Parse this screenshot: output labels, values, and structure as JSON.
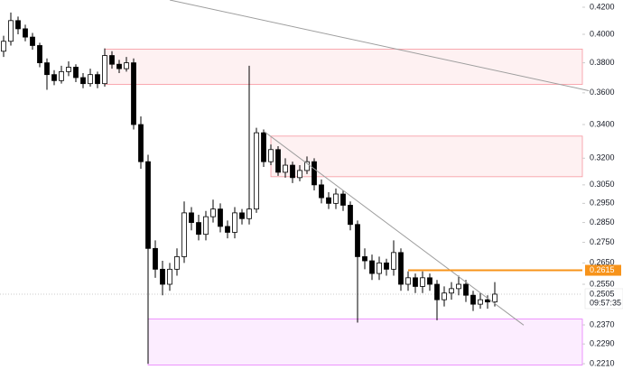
{
  "chart_data": {
    "type": "candlestick",
    "log_scale": true,
    "ylim": [
      0.215,
      0.4255
    ],
    "yticks": [
      {
        "value": 0.42,
        "label": "0.4200"
      },
      {
        "value": 0.4,
        "label": "0.4000"
      },
      {
        "value": 0.38,
        "label": "0.3800"
      },
      {
        "value": 0.36,
        "label": "0.3600"
      },
      {
        "value": 0.34,
        "label": "0.3400"
      },
      {
        "value": 0.32,
        "label": "0.3200"
      },
      {
        "value": 0.305,
        "label": "0.3050"
      },
      {
        "value": 0.295,
        "label": "0.2950"
      },
      {
        "value": 0.285,
        "label": "0.2850"
      },
      {
        "value": 0.275,
        "label": "0.2750"
      },
      {
        "value": 0.265,
        "label": "0.2650"
      },
      {
        "value": 0.255,
        "label": "0.2550"
      },
      {
        "value": 0.237,
        "label": "0.2370"
      },
      {
        "value": 0.229,
        "label": "0.2290"
      },
      {
        "value": 0.221,
        "label": "0.2210"
      }
    ],
    "up_color": "#ffffff",
    "down_color": "#000000",
    "outline_color": "#000000",
    "open": [
      0.388,
      0.395,
      0.41,
      0.404,
      0.398,
      0.392,
      0.38,
      0.372,
      0.368,
      0.374,
      0.377,
      0.37,
      0.366,
      0.372,
      0.366,
      0.385,
      0.379,
      0.376,
      0.38,
      0.34,
      0.318,
      0.272,
      0.262,
      0.255,
      0.262,
      0.268,
      0.29,
      0.285,
      0.279,
      0.288,
      0.292,
      0.283,
      0.28,
      0.29,
      0.287,
      0.292,
      0.335,
      0.318,
      0.325,
      0.312,
      0.316,
      0.309,
      0.313,
      0.318,
      0.305,
      0.298,
      0.295,
      0.3,
      0.294,
      0.284,
      0.268,
      0.266,
      0.26,
      0.265,
      0.262,
      0.27,
      0.255,
      0.258,
      0.254,
      0.258,
      0.255,
      0.248,
      0.251,
      0.253,
      0.255,
      0.25,
      0.246,
      0.248,
      0.247
    ],
    "high": [
      0.399,
      0.416,
      0.413,
      0.407,
      0.401,
      0.394,
      0.383,
      0.375,
      0.378,
      0.381,
      0.379,
      0.373,
      0.376,
      0.374,
      0.39,
      0.388,
      0.382,
      0.384,
      0.383,
      0.345,
      0.322,
      0.276,
      0.266,
      0.265,
      0.272,
      0.296,
      0.293,
      0.289,
      0.291,
      0.297,
      0.295,
      0.286,
      0.293,
      0.292,
      0.378,
      0.338,
      0.337,
      0.328,
      0.327,
      0.32,
      0.318,
      0.316,
      0.321,
      0.32,
      0.308,
      0.301,
      0.303,
      0.302,
      0.296,
      0.286,
      0.272,
      0.269,
      0.268,
      0.267,
      0.276,
      0.272,
      0.261,
      0.26,
      0.261,
      0.26,
      0.257,
      0.254,
      0.256,
      0.259,
      0.257,
      0.252,
      0.251,
      0.25,
      0.256
    ],
    "low": [
      0.384,
      0.392,
      0.4,
      0.395,
      0.389,
      0.377,
      0.362,
      0.365,
      0.366,
      0.371,
      0.367,
      0.363,
      0.364,
      0.363,
      0.364,
      0.376,
      0.373,
      0.374,
      0.337,
      0.314,
      0.221,
      0.258,
      0.25,
      0.252,
      0.259,
      0.265,
      0.281,
      0.276,
      0.276,
      0.285,
      0.28,
      0.277,
      0.277,
      0.284,
      0.284,
      0.29,
      0.315,
      0.316,
      0.31,
      0.309,
      0.306,
      0.307,
      0.311,
      0.302,
      0.295,
      0.292,
      0.292,
      0.291,
      0.281,
      0.238,
      0.262,
      0.257,
      0.257,
      0.259,
      0.259,
      0.252,
      0.252,
      0.251,
      0.251,
      0.252,
      0.239,
      0.245,
      0.248,
      0.25,
      0.247,
      0.243,
      0.244,
      0.244,
      0.245
    ],
    "close": [
      0.395,
      0.41,
      0.404,
      0.398,
      0.392,
      0.38,
      0.372,
      0.368,
      0.374,
      0.377,
      0.37,
      0.366,
      0.372,
      0.366,
      0.385,
      0.379,
      0.376,
      0.38,
      0.34,
      0.318,
      0.272,
      0.262,
      0.255,
      0.262,
      0.268,
      0.29,
      0.285,
      0.279,
      0.288,
      0.292,
      0.283,
      0.28,
      0.29,
      0.287,
      0.292,
      0.335,
      0.318,
      0.325,
      0.312,
      0.316,
      0.309,
      0.313,
      0.318,
      0.305,
      0.298,
      0.295,
      0.3,
      0.294,
      0.284,
      0.268,
      0.266,
      0.26,
      0.265,
      0.262,
      0.27,
      0.255,
      0.258,
      0.254,
      0.258,
      0.255,
      0.248,
      0.251,
      0.253,
      0.255,
      0.25,
      0.246,
      0.248,
      0.247,
      0.2505
    ],
    "zones": [
      {
        "x_start": 14,
        "top": 0.3895,
        "bottom": 0.3655,
        "color": "#f23645"
      },
      {
        "x_start": 37,
        "top": 0.333,
        "bottom": 0.3095,
        "color": "#f23645"
      },
      {
        "x_start": 20,
        "top": 0.2395,
        "bottom": 0.2205,
        "color": "#d500f9"
      }
    ],
    "trend_lines": [
      {
        "x": [
          23,
          81
        ],
        "y": [
          0.4255,
          0.3614
        ],
        "color": "#9e9e9e"
      },
      {
        "x": [
          36,
          72
        ],
        "y": [
          0.336,
          0.2369
        ],
        "color": "#9e9e9e"
      }
    ],
    "level": {
      "value": 0.2615,
      "label": "0.2615",
      "x_start": 56,
      "color": "#f7931a"
    },
    "last_price": {
      "value": 0.2505,
      "label": "0.2505"
    },
    "countdown": "09:57:35"
  }
}
